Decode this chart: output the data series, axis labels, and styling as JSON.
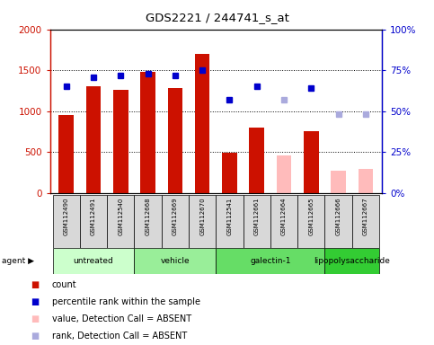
{
  "title": "GDS2221 / 244741_s_at",
  "samples": [
    "GSM112490",
    "GSM112491",
    "GSM112540",
    "GSM112668",
    "GSM112669",
    "GSM112670",
    "GSM112541",
    "GSM112661",
    "GSM112664",
    "GSM112665",
    "GSM112666",
    "GSM112667"
  ],
  "agents": [
    {
      "label": "untreated",
      "color": "#ccffcc",
      "start": 0,
      "end": 3
    },
    {
      "label": "vehicle",
      "color": "#99ee99",
      "start": 3,
      "end": 6
    },
    {
      "label": "galectin-1",
      "color": "#66dd66",
      "start": 6,
      "end": 10
    },
    {
      "label": "lipopolysaccharide",
      "color": "#33cc33",
      "start": 10,
      "end": 12
    }
  ],
  "bar_values": [
    950,
    1300,
    1260,
    1480,
    1280,
    1700,
    490,
    800,
    null,
    760,
    null,
    null
  ],
  "bar_absent": [
    null,
    null,
    null,
    null,
    null,
    null,
    null,
    null,
    460,
    null,
    280,
    300
  ],
  "rank_pct": [
    65,
    71,
    72,
    73,
    72,
    75,
    57,
    65,
    null,
    64,
    null,
    null
  ],
  "rank_abs_pct": [
    null,
    null,
    null,
    null,
    null,
    null,
    null,
    null,
    57,
    null,
    48,
    48
  ],
  "ylim_left": [
    0,
    2000
  ],
  "ylim_right": [
    0,
    100
  ],
  "yticks_left": [
    0,
    500,
    1000,
    1500,
    2000
  ],
  "yticks_right": [
    0,
    25,
    50,
    75,
    100
  ],
  "ytick_labels_left": [
    "0",
    "500",
    "1000",
    "1500",
    "2000"
  ],
  "ytick_labels_right": [
    "0%",
    "25%",
    "50%",
    "75%",
    "100%"
  ],
  "bar_color": "#cc1100",
  "bar_abs_color": "#ffbbbb",
  "rank_color": "#0000cc",
  "rank_abs_color": "#aaaadd",
  "legend_items": [
    {
      "label": "count",
      "color": "#cc1100"
    },
    {
      "label": "percentile rank within the sample",
      "color": "#0000cc"
    },
    {
      "label": "value, Detection Call = ABSENT",
      "color": "#ffbbbb"
    },
    {
      "label": "rank, Detection Call = ABSENT",
      "color": "#aaaadd"
    }
  ]
}
